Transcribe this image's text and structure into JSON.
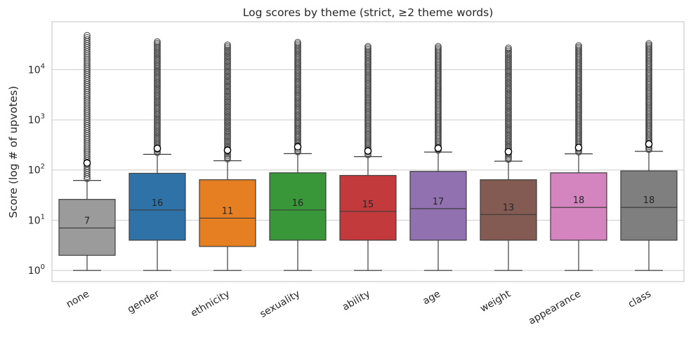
{
  "chart_data": {
    "type": "box",
    "title": "Log scores by theme (strict, ≥2 theme words)",
    "xlabel": "",
    "ylabel": "Score (log # of upvotes)",
    "yscale": "log",
    "ylim": [
      0.6,
      90000
    ],
    "yticks": [
      1,
      10,
      100,
      1000,
      10000
    ],
    "ytick_labels": [
      "10^0",
      "10^1",
      "10^2",
      "10^3",
      "10^4"
    ],
    "grid": "horizontal",
    "legend": "none",
    "categories": [
      "none",
      "gender",
      "ethnicity",
      "sexuality",
      "ability",
      "age",
      "weight",
      "appearance",
      "class"
    ],
    "colors": [
      "#9b9b9b",
      "#2f72a8",
      "#e67e22",
      "#39973a",
      "#c23a3b",
      "#9271b1",
      "#845b52",
      "#d485c0",
      "#7f7f7f"
    ],
    "boxes": [
      {
        "category": "none",
        "min": 1,
        "q1": 2,
        "median": 7,
        "q3": 26,
        "whisker_high": 62,
        "mean": 138,
        "outlier_max": 48000,
        "median_label": "7"
      },
      {
        "category": "gender",
        "min": 1,
        "q1": 4,
        "median": 16,
        "q3": 86,
        "whisker_high": 205,
        "mean": 270,
        "outlier_max": 36000,
        "median_label": "16"
      },
      {
        "category": "ethnicity",
        "min": 1,
        "q1": 3,
        "median": 11,
        "q3": 64,
        "whisker_high": 153,
        "mean": 248,
        "outlier_max": 31000,
        "median_label": "11"
      },
      {
        "category": "sexuality",
        "min": 1,
        "q1": 4,
        "median": 16,
        "q3": 88,
        "whisker_high": 212,
        "mean": 290,
        "outlier_max": 35000,
        "median_label": "16"
      },
      {
        "category": "ability",
        "min": 1,
        "q1": 4,
        "median": 15,
        "q3": 78,
        "whisker_high": 185,
        "mean": 240,
        "outlier_max": 29000,
        "median_label": "15"
      },
      {
        "category": "age",
        "min": 1,
        "q1": 4,
        "median": 17,
        "q3": 94,
        "whisker_high": 228,
        "mean": 272,
        "outlier_max": 29000,
        "median_label": "17"
      },
      {
        "category": "weight",
        "min": 1,
        "q1": 4,
        "median": 13,
        "q3": 64,
        "whisker_high": 150,
        "mean": 232,
        "outlier_max": 27000,
        "median_label": "13"
      },
      {
        "category": "appearance",
        "min": 1,
        "q1": 4,
        "median": 18,
        "q3": 88,
        "whisker_high": 210,
        "mean": 280,
        "outlier_max": 30000,
        "median_label": "18"
      },
      {
        "category": "class",
        "min": 1,
        "q1": 4,
        "median": 18,
        "q3": 96,
        "whisker_high": 235,
        "mean": 330,
        "outlier_max": 33000,
        "median_label": "18"
      }
    ]
  }
}
